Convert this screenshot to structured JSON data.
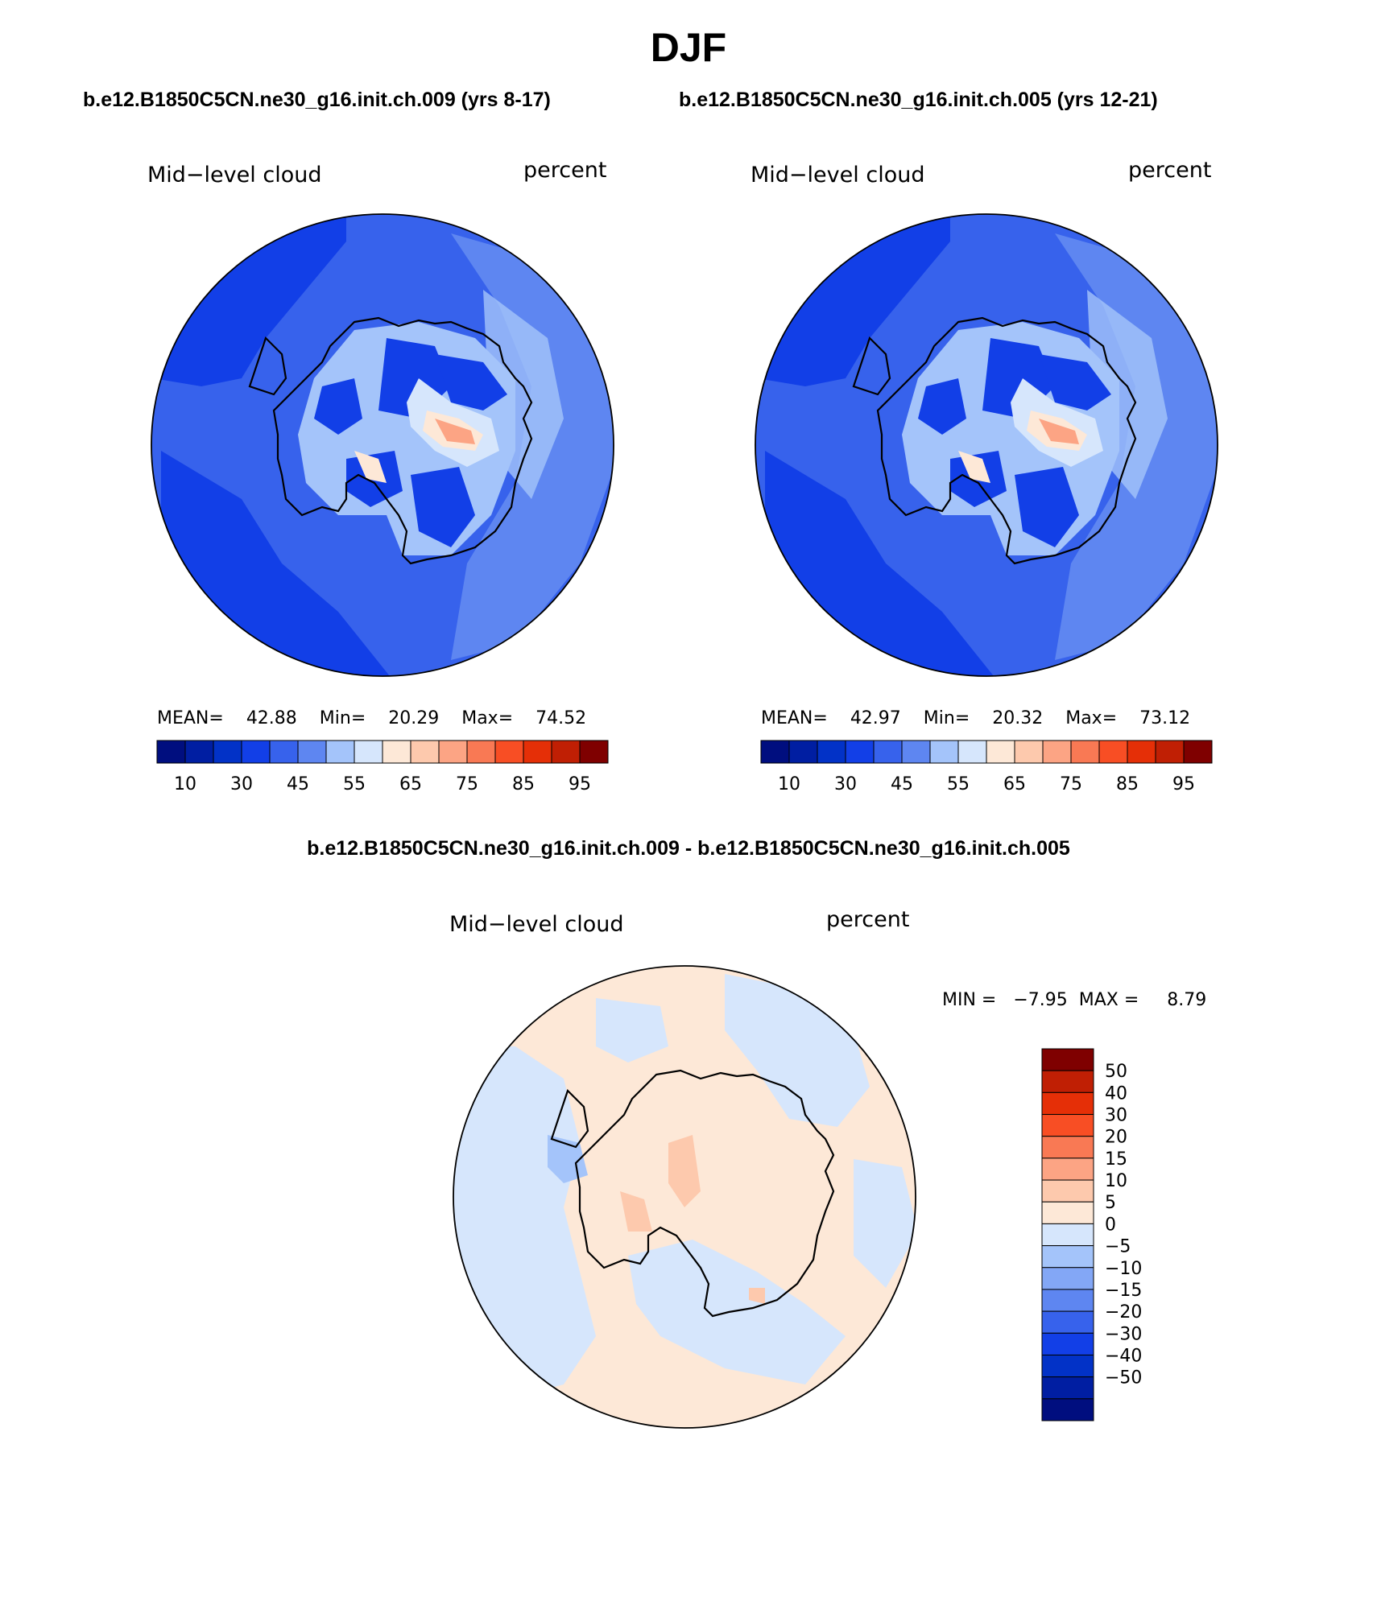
{
  "title": "DJF",
  "case_titles": {
    "left": "b.e12.B1850C5CN.ne30_g16.init.ch.009 (yrs 8-17)",
    "right": "b.e12.B1850C5CN.ne30_g16.init.ch.005 (yrs 12-21)",
    "diff": "b.e12.B1850C5CN.ne30_g16.init.ch.009 - b.e12.B1850C5CN.ne30_g16.init.ch.005"
  },
  "panels": [
    {
      "id": "left",
      "variable": "Mid−level cloud",
      "units": "percent",
      "mean_label": "MEAN=",
      "mean": "42.88",
      "min_label": "Min=",
      "min": "20.29",
      "max_label": "Max=",
      "max": "74.52"
    },
    {
      "id": "right",
      "variable": "Mid−level cloud",
      "units": "percent",
      "mean_label": "MEAN=",
      "mean": "42.97",
      "min_label": "Min=",
      "min": "20.32",
      "max_label": "Max=",
      "max": "73.12"
    },
    {
      "id": "diff",
      "variable": "Mid−level cloud",
      "units": "percent",
      "minmax_text": "MIN =   −7.95  MAX =     8.79"
    }
  ],
  "colorbar_main": {
    "colors": [
      "#000e7f",
      "#001ea2",
      "#0232c7",
      "#123fe7",
      "#3762ec",
      "#5e86f1",
      "#a4c4fa",
      "#d6e6fc",
      "#fde8d7",
      "#fdc9ad",
      "#fca484",
      "#f97954",
      "#f84e24",
      "#e52f07",
      "#c01f04",
      "#7f0000"
    ],
    "tick_labels": [
      "10",
      "30",
      "45",
      "55",
      "65",
      "75",
      "85",
      "95"
    ]
  },
  "colorbar_diff": {
    "colors_top_to_bottom": [
      "#7f0000",
      "#c01f04",
      "#e52f07",
      "#f84e24",
      "#f97954",
      "#fca484",
      "#fdc9ad",
      "#fde8d7",
      "#d6e6fc",
      "#a4c4fa",
      "#83a7f6",
      "#5e86f1",
      "#3762ec",
      "#123fe7",
      "#0232c7",
      "#001ea2",
      "#000e7f"
    ],
    "tick_labels": [
      "50",
      "40",
      "30",
      "20",
      "15",
      "10",
      "5",
      "0",
      "−5",
      "−10",
      "−15",
      "−20",
      "−30",
      "−40",
      "−50"
    ]
  },
  "map_colors": {
    "ocean_base": "#3762ec",
    "deep": "#123fe7",
    "light": "#5e86f1",
    "pale": "#a4c4fa",
    "palest": "#d6e6fc",
    "warm1": "#fde8d7",
    "warm2": "#fdc9ad",
    "warm3": "#fca484",
    "diff_base": "#fde8d7",
    "diff_neg": "#d6e6fc",
    "diff_neg2": "#a4c4fa",
    "diff_pos2": "#fdc9ad"
  }
}
